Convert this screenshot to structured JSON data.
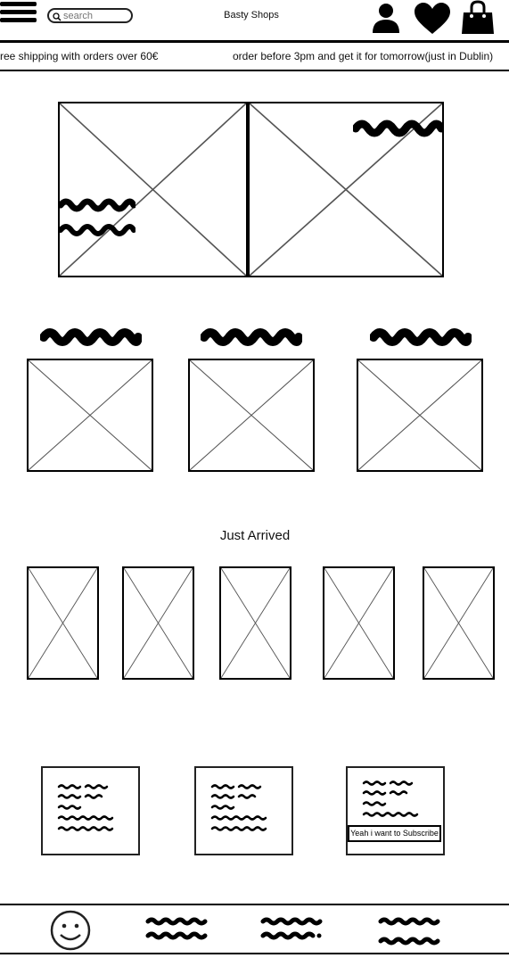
{
  "header": {
    "menu_icon": "hamburger-icon",
    "search": {
      "placeholder": "search",
      "value": "",
      "icon": "search-icon"
    },
    "brand": "Basty Shops",
    "actions": [
      {
        "icon": "user-icon"
      },
      {
        "icon": "heart-icon"
      },
      {
        "icon": "shopping-bag-icon"
      }
    ]
  },
  "banner": {
    "messages": [
      "ree shipping with orders over 60€",
      "order before 3pm and get it for tomorrow(just in Dublin)"
    ]
  },
  "sections": {
    "just_arrived_title": "Just Arrived"
  },
  "subscribe": {
    "button_label": "Yeah i want to Subscribe"
  },
  "footer": {
    "logo_icon": "smiley-icon"
  }
}
